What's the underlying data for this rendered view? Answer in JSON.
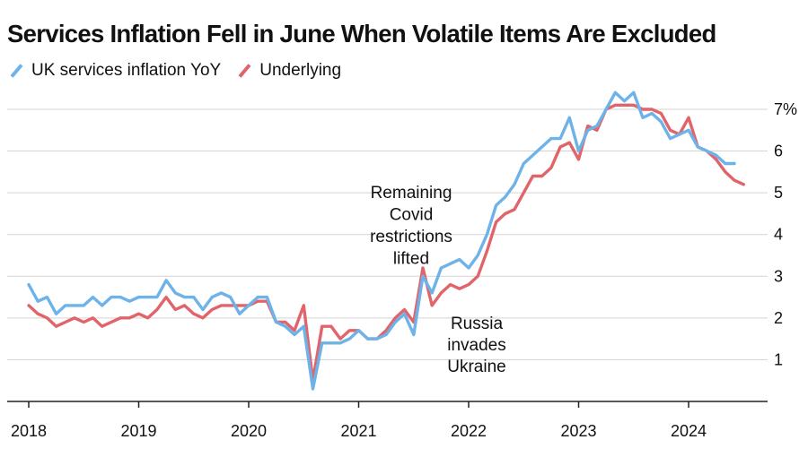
{
  "chart_data": {
    "type": "line",
    "title": "Services Inflation Fell in June When Volatile Items Are Excluded",
    "xlabel": "",
    "ylabel": "",
    "x_ticks": [
      "2018",
      "2019",
      "2020",
      "2021",
      "2022",
      "2023",
      "2024"
    ],
    "y_ticks": [
      {
        "value": 1,
        "label": "1"
      },
      {
        "value": 2,
        "label": "2"
      },
      {
        "value": 3,
        "label": "3"
      },
      {
        "value": 4,
        "label": "4"
      },
      {
        "value": 5,
        "label": "5"
      },
      {
        "value": 6,
        "label": "6"
      },
      {
        "value": 7,
        "label": "7%"
      }
    ],
    "ylim": [
      0,
      7.3
    ],
    "xlim": [
      2017.92,
      2024.75
    ],
    "series": [
      {
        "name": "UK services inflation YoY",
        "color": "#6db3e9",
        "start": 2018.0,
        "step_months": 1,
        "values": [
          2.8,
          2.4,
          2.5,
          2.1,
          2.3,
          2.3,
          2.3,
          2.5,
          2.3,
          2.5,
          2.5,
          2.4,
          2.5,
          2.5,
          2.5,
          2.9,
          2.6,
          2.5,
          2.5,
          2.2,
          2.5,
          2.6,
          2.5,
          2.1,
          2.3,
          2.5,
          2.5,
          1.9,
          1.8,
          1.6,
          1.8,
          0.3,
          1.4,
          1.4,
          1.4,
          1.5,
          1.7,
          1.5,
          1.5,
          1.6,
          1.9,
          2.1,
          1.6,
          3.0,
          2.6,
          3.2,
          3.3,
          3.4,
          3.2,
          3.5,
          4.0,
          4.7,
          4.9,
          5.2,
          5.7,
          5.9,
          6.1,
          6.3,
          6.3,
          6.8,
          6.0,
          6.5,
          6.6,
          7.0,
          7.4,
          7.2,
          7.4,
          6.8,
          6.9,
          6.7,
          6.3,
          6.4,
          6.5,
          6.1,
          6.0,
          5.9,
          5.7,
          5.7
        ]
      },
      {
        "name": "Underlying",
        "color": "#e06469",
        "start": 2018.0,
        "step_months": 1,
        "values": [
          2.3,
          2.1,
          2.0,
          1.8,
          1.9,
          2.0,
          1.9,
          2.0,
          1.8,
          1.9,
          2.0,
          2.0,
          2.1,
          2.0,
          2.2,
          2.5,
          2.2,
          2.3,
          2.1,
          2.0,
          2.2,
          2.3,
          2.3,
          2.3,
          2.3,
          2.4,
          2.4,
          1.9,
          1.9,
          1.7,
          2.3,
          0.5,
          1.8,
          1.8,
          1.5,
          1.7,
          1.7,
          1.5,
          1.5,
          1.7,
          2.0,
          2.2,
          1.9,
          3.2,
          2.3,
          2.6,
          2.8,
          2.7,
          2.8,
          3.0,
          3.6,
          4.3,
          4.5,
          4.6,
          5.0,
          5.4,
          5.4,
          5.6,
          6.1,
          6.2,
          5.8,
          6.6,
          6.5,
          7.0,
          7.1,
          7.1,
          7.1,
          7.0,
          7.0,
          6.9,
          6.5,
          6.4,
          6.8,
          6.1,
          6.0,
          5.8,
          5.5,
          5.3,
          5.2
        ]
      }
    ],
    "annotations": [
      {
        "id": "covid",
        "lines": [
          "Remaining",
          "Covid",
          "restrictions",
          "lifted"
        ]
      },
      {
        "id": "russia",
        "lines": [
          "Russia",
          "invades",
          "Ukraine"
        ]
      }
    ]
  }
}
